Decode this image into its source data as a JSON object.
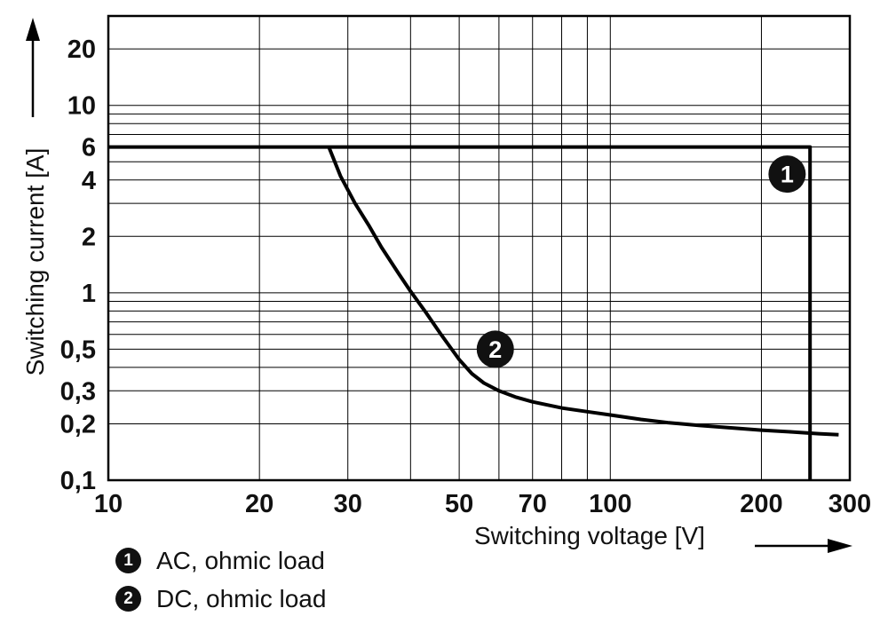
{
  "chart_data": {
    "type": "line",
    "title": "",
    "xlabel": "Switching voltage [V]",
    "ylabel": "Switching current [A]",
    "xscale": "log",
    "yscale": "log",
    "xlim": [
      10,
      300
    ],
    "ylim": [
      0.1,
      30
    ],
    "grid": true,
    "x_ticks": [
      {
        "value": 10,
        "label": "10"
      },
      {
        "value": 20,
        "label": "20"
      },
      {
        "value": 30,
        "label": "30"
      },
      {
        "value": 50,
        "label": "50"
      },
      {
        "value": 70,
        "label": "70"
      },
      {
        "value": 100,
        "label": "100"
      },
      {
        "value": 200,
        "label": "200"
      },
      {
        "value": 300,
        "label": "300"
      }
    ],
    "y_ticks": [
      {
        "value": 20,
        "label": "20"
      },
      {
        "value": 10,
        "label": "10"
      },
      {
        "value": 6,
        "label": "6"
      },
      {
        "value": 4,
        "label": "4"
      },
      {
        "value": 2,
        "label": "2"
      },
      {
        "value": 1,
        "label": "1"
      },
      {
        "value": 0.5,
        "label": "0,5"
      },
      {
        "value": 0.3,
        "label": "0,3"
      },
      {
        "value": 0.2,
        "label": "0,2"
      },
      {
        "value": 0.1,
        "label": "0,1"
      }
    ],
    "x_gridlines": [
      20,
      30,
      40,
      50,
      60,
      70,
      80,
      90,
      100,
      200
    ],
    "y_gridlines": [
      0.2,
      0.3,
      0.4,
      0.5,
      0.6,
      0.7,
      0.8,
      0.9,
      1,
      2,
      3,
      4,
      5,
      6,
      7,
      8,
      9,
      10,
      20
    ],
    "series": [
      {
        "id": "1",
        "name": "AC, ohmic load",
        "points": [
          [
            10,
            6
          ],
          [
            250,
            6
          ],
          [
            250,
            0.1
          ]
        ]
      },
      {
        "id": "2",
        "name": "DC, ohmic load",
        "points": [
          [
            27.5,
            6
          ],
          [
            29,
            4.2
          ],
          [
            31,
            3.0
          ],
          [
            33,
            2.3
          ],
          [
            35,
            1.75
          ],
          [
            38,
            1.25
          ],
          [
            40,
            1.02
          ],
          [
            43,
            0.78
          ],
          [
            46,
            0.6
          ],
          [
            50,
            0.44
          ],
          [
            53,
            0.37
          ],
          [
            56,
            0.33
          ],
          [
            60,
            0.3
          ],
          [
            65,
            0.277
          ],
          [
            70,
            0.262
          ],
          [
            80,
            0.243
          ],
          [
            90,
            0.232
          ],
          [
            100,
            0.223
          ],
          [
            115,
            0.211
          ],
          [
            130,
            0.203
          ],
          [
            150,
            0.196
          ],
          [
            175,
            0.19
          ],
          [
            200,
            0.185
          ],
          [
            230,
            0.181
          ],
          [
            260,
            0.177
          ],
          [
            285,
            0.175
          ]
        ]
      }
    ],
    "curve_markers": [
      {
        "label": "1",
        "at": [
          225,
          4.3
        ]
      },
      {
        "label": "2",
        "at": [
          59,
          0.5
        ]
      }
    ]
  },
  "legend": {
    "items": [
      {
        "symbol": "1",
        "label": "AC, ohmic load"
      },
      {
        "symbol": "2",
        "label": "DC, ohmic load"
      }
    ]
  }
}
